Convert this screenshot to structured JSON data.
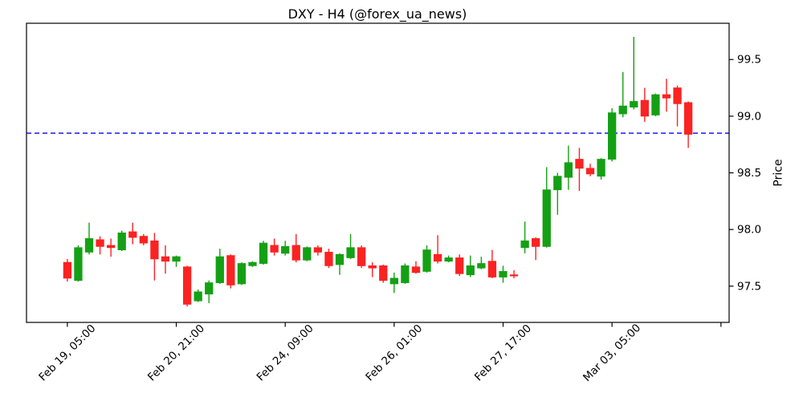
{
  "title": "DXY - H4 (@forex_ua_news)",
  "chart_data": {
    "type": "candlestick",
    "symbol": "DXY",
    "timeframe": "H4",
    "ylabel": "Price",
    "grid": false,
    "y_axis_side": "right",
    "y_ticks": [
      97.5,
      98.0,
      98.5,
      99.0,
      99.5
    ],
    "ylim": [
      97.18,
      99.82
    ],
    "xlim": [
      -3.75,
      60.75
    ],
    "x_tick_indices": [
      0,
      10,
      20,
      30,
      40,
      50
    ],
    "x_tick_labels": [
      "Feb 19, 05:00",
      "Feb 20, 21:00",
      "Feb 24, 09:00",
      "Feb 26, 01:00",
      "Feb 27, 17:00",
      "Mar 03, 05:00"
    ],
    "x_unlabeled_tick_index": 60,
    "hline": 98.85,
    "colors": {
      "up": "#14a014",
      "down": "#fb2222",
      "hline": "#0000ff",
      "axis": "#000000",
      "background": "#ffffff"
    },
    "candles_format": [
      "open",
      "high",
      "low",
      "close"
    ],
    "candles": [
      [
        97.71,
        97.74,
        97.54,
        97.57
      ],
      [
        97.55,
        97.86,
        97.54,
        97.84
      ],
      [
        97.8,
        98.06,
        97.78,
        97.92
      ],
      [
        97.91,
        97.94,
        97.78,
        97.85
      ],
      [
        97.86,
        97.92,
        97.76,
        97.84
      ],
      [
        97.82,
        97.99,
        97.81,
        97.97
      ],
      [
        97.98,
        98.06,
        97.87,
        97.93
      ],
      [
        97.94,
        97.96,
        97.86,
        97.88
      ],
      [
        97.9,
        97.97,
        97.55,
        97.74
      ],
      [
        97.76,
        97.86,
        97.61,
        97.72
      ],
      [
        97.72,
        97.77,
        97.67,
        97.76
      ],
      [
        97.67,
        97.68,
        97.32,
        97.34
      ],
      [
        97.37,
        97.47,
        97.36,
        97.45
      ],
      [
        97.43,
        97.55,
        97.35,
        97.53
      ],
      [
        97.53,
        97.83,
        97.52,
        97.76
      ],
      [
        97.77,
        97.78,
        97.48,
        97.51
      ],
      [
        97.52,
        97.71,
        97.51,
        97.7
      ],
      [
        97.68,
        97.72,
        97.67,
        97.71
      ],
      [
        97.7,
        97.9,
        97.69,
        97.88
      ],
      [
        97.86,
        97.92,
        97.77,
        97.8
      ],
      [
        97.79,
        97.9,
        97.77,
        97.85
      ],
      [
        97.86,
        97.96,
        97.71,
        97.73
      ],
      [
        97.73,
        97.85,
        97.72,
        97.84
      ],
      [
        97.84,
        97.86,
        97.77,
        97.8
      ],
      [
        97.8,
        97.83,
        97.66,
        97.68
      ],
      [
        97.69,
        97.79,
        97.6,
        97.78
      ],
      [
        97.75,
        97.96,
        97.74,
        97.84
      ],
      [
        97.84,
        97.86,
        97.66,
        97.68
      ],
      [
        97.68,
        97.71,
        97.58,
        97.66
      ],
      [
        97.68,
        97.69,
        97.53,
        97.55
      ],
      [
        97.52,
        97.62,
        97.44,
        97.57
      ],
      [
        97.53,
        97.7,
        97.52,
        97.68
      ],
      [
        97.67,
        97.72,
        97.61,
        97.62
      ],
      [
        97.63,
        97.86,
        97.62,
        97.82
      ],
      [
        97.78,
        97.95,
        97.7,
        97.72
      ],
      [
        97.72,
        97.77,
        97.71,
        97.75
      ],
      [
        97.75,
        97.78,
        97.59,
        97.61
      ],
      [
        97.6,
        97.77,
        97.58,
        97.68
      ],
      [
        97.66,
        97.76,
        97.65,
        97.7
      ],
      [
        97.72,
        97.82,
        97.57,
        97.58
      ],
      [
        97.58,
        97.68,
        97.53,
        97.63
      ],
      [
        97.6,
        97.64,
        97.57,
        97.59
      ],
      [
        97.84,
        98.07,
        97.79,
        97.9
      ],
      [
        97.92,
        97.93,
        97.73,
        97.85
      ],
      [
        97.85,
        98.55,
        97.84,
        98.35
      ],
      [
        98.35,
        98.5,
        98.13,
        98.47
      ],
      [
        98.46,
        98.74,
        98.35,
        98.59
      ],
      [
        98.62,
        98.72,
        98.34,
        98.54
      ],
      [
        98.54,
        98.58,
        98.47,
        98.49
      ],
      [
        98.47,
        98.63,
        98.44,
        98.62
      ],
      [
        98.62,
        99.07,
        98.6,
        99.03
      ],
      [
        99.02,
        99.39,
        98.99,
        99.09
      ],
      [
        99.08,
        99.7,
        99.06,
        99.13
      ],
      [
        99.14,
        99.25,
        98.95,
        99.0
      ],
      [
        99.01,
        99.2,
        99.0,
        99.19
      ],
      [
        99.19,
        99.33,
        99.04,
        99.16
      ],
      [
        99.25,
        99.27,
        98.91,
        99.11
      ],
      [
        99.12,
        99.13,
        98.72,
        98.84
      ]
    ]
  }
}
